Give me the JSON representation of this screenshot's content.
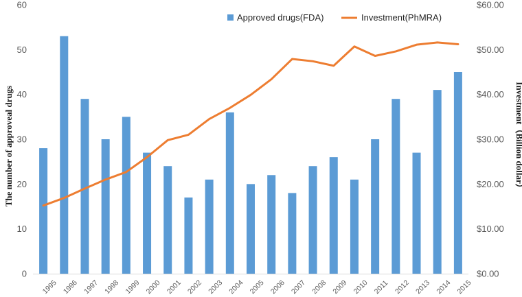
{
  "chart_data": {
    "type": "bar+line",
    "categories": [
      "1995",
      "1996",
      "1997",
      "1998",
      "1999",
      "2000",
      "2001",
      "2002",
      "2003",
      "2004",
      "2005",
      "2006",
      "2007",
      "2008",
      "2009",
      "2010",
      "2011",
      "2012",
      "2013",
      "2014",
      "2015"
    ],
    "series": [
      {
        "name": "Approved drugs(FDA)",
        "type": "bar",
        "axis": "left",
        "color": "#5b9bd5",
        "values": [
          28,
          53,
          39,
          30,
          35,
          27,
          24,
          17,
          21,
          36,
          20,
          22,
          18,
          24,
          26,
          21,
          30,
          39,
          27,
          41,
          45
        ]
      },
      {
        "name": "Investment(PhMRA)",
        "type": "line",
        "axis": "right",
        "color": "#ed7d31",
        "values": [
          15.2,
          16.9,
          19.0,
          21.0,
          22.7,
          26.0,
          29.8,
          31.0,
          34.5,
          37.0,
          39.9,
          43.4,
          47.9,
          47.4,
          46.4,
          50.7,
          48.6,
          49.6,
          51.1,
          51.6,
          51.2
        ]
      }
    ],
    "ylabel": "The number of approveal drugs",
    "y2label": "Investment（Billion dollar）",
    "ylim": [
      0,
      60
    ],
    "y2lim": [
      0,
      60
    ],
    "yticks": [
      "0",
      "10",
      "20",
      "30",
      "40",
      "50",
      "60"
    ],
    "y2ticks": [
      "$0.00",
      "$10.00",
      "$20.00",
      "$30.00",
      "$40.00",
      "$50.00",
      "$60.00"
    ],
    "legend_position": "top-right",
    "grid": false
  }
}
